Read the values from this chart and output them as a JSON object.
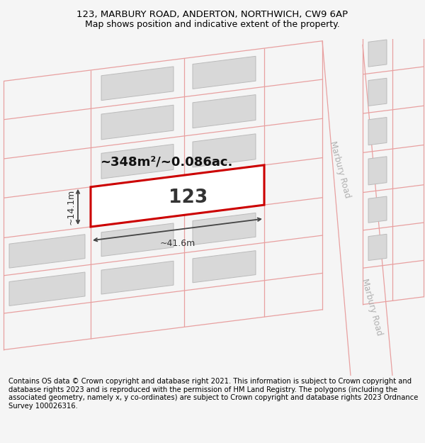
{
  "title_line1": "123, MARBURY ROAD, ANDERTON, NORTHWICH, CW9 6AP",
  "title_line2": "Map shows position and indicative extent of the property.",
  "footer_text": "Contains OS data © Crown copyright and database right 2021. This information is subject to Crown copyright and database rights 2023 and is reproduced with the permission of HM Land Registry. The polygons (including the associated geometry, namely x, y co-ordinates) are subject to Crown copyright and database rights 2023 Ordnance Survey 100026316.",
  "bg_color": "#f5f5f5",
  "map_bg": "#ffffff",
  "plot_color": "#cc0000",
  "road_line_color": "#e8a0a0",
  "building_fill": "#d8d8d8",
  "building_edge": "#bbbbbb",
  "road_label": "Marbury Road",
  "property_label": "123",
  "area_label": "~348m²/~0.086ac.",
  "dim_width": "~41.6m",
  "dim_height": "~14.1m",
  "title_fontsize": 9.5,
  "footer_fontsize": 7.2,
  "tilt": -0.13
}
